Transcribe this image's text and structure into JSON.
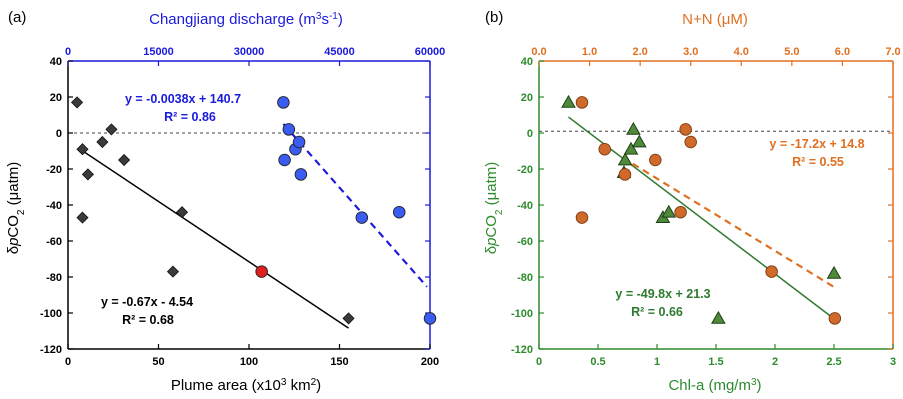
{
  "colors": {
    "black": "#000000",
    "blue": "#1a1adc",
    "blue_marker": "#3a5cf0",
    "red": "#e02020",
    "dark_gray_marker": "#3a3a3a",
    "green": "#2e8b2e",
    "green_marker": "#4f8a3a",
    "orange": "#e07020",
    "orange_marker": "#d06a2a"
  },
  "chart_data": [
    {
      "panel_label": "(a)",
      "type": "scatter",
      "xlabel": "Plume area (x10³ km²)",
      "ylabel": "δpCO₂ (μatm)",
      "xlim": [
        0,
        200
      ],
      "ylim": [
        -120,
        40
      ],
      "xticks": [
        "0",
        "50",
        "100",
        "150",
        "200"
      ],
      "yticks": [
        "40",
        "20",
        "0",
        "-20",
        "-40",
        "-60",
        "-80",
        "-100",
        "-120"
      ],
      "x2label": "Changjiang discharge (m³s⁻¹)",
      "x2lim": [
        0,
        60000
      ],
      "x2ticks": [
        "0",
        "15000",
        "30000",
        "45000",
        "60000"
      ],
      "zero_line": 0,
      "series": [
        {
          "axis": "bottom",
          "marker": "diamond",
          "color": "#3a3a3a",
          "points": [
            [
              5,
              17
            ],
            [
              8,
              -9
            ],
            [
              11,
              -23
            ],
            [
              8,
              -47
            ],
            [
              19,
              -5
            ],
            [
              24,
              2
            ],
            [
              31,
              -15
            ],
            [
              63,
              -44
            ],
            [
              58,
              -77
            ],
            [
              155,
              -103
            ]
          ]
        },
        {
          "axis": "bottom",
          "marker": "circle",
          "color": "#e02020",
          "points": [
            [
              107,
              -77
            ]
          ]
        },
        {
          "axis": "top",
          "marker": "circle",
          "color": "#3a5cf0",
          "points": [
            [
              35700,
              17
            ],
            [
              36600,
              2
            ],
            [
              35900,
              -15
            ],
            [
              37700,
              -9
            ],
            [
              38300,
              -5
            ],
            [
              38600,
              -23
            ],
            [
              48700,
              -47
            ],
            [
              54900,
              -44
            ],
            [
              60000,
              -103
            ]
          ]
        }
      ],
      "fits": [
        {
          "axis": "bottom",
          "x_range": [
            7,
            155
          ],
          "color": "#000000",
          "dashed": false,
          "slope": -0.67,
          "intercept": -4.54,
          "equation": "y = -0.67x - 4.54",
          "r2": "R² = 0.68"
        },
        {
          "axis": "top",
          "x_range": [
            35700,
            59500
          ],
          "color": "#1a1adc",
          "dashed": true,
          "slope": -0.0038,
          "intercept": 140.7,
          "equation": "y = -0.0038x + 140.7",
          "r2": "R² = 0.86"
        }
      ]
    },
    {
      "panel_label": "(b)",
      "type": "scatter",
      "xlabel": "Chl-a (mg/m³)",
      "ylabel": "δpCO₂ (μatm)",
      "xlim": [
        0,
        3
      ],
      "ylim": [
        -120,
        40
      ],
      "xticks": [
        "0",
        "0.5",
        "1",
        "1.5",
        "2",
        "2.5",
        "3"
      ],
      "yticks": [
        "40",
        "20",
        "0",
        "-20",
        "-40",
        "-60",
        "-80",
        "-100",
        "-120"
      ],
      "x2label": "N+N (μM)",
      "x2lim": [
        0,
        7
      ],
      "x2ticks": [
        "0.0",
        "1.0",
        "2.0",
        "3.0",
        "4.0",
        "5.0",
        "6.0",
        "7.0"
      ],
      "zero_line": 1,
      "series": [
        {
          "axis": "bottom",
          "marker": "triangle",
          "color": "#4f8a3a",
          "points": [
            [
              0.25,
              17
            ],
            [
              0.73,
              -15
            ],
            [
              0.72,
              -22
            ],
            [
              0.78,
              -9
            ],
            [
              0.8,
              2
            ],
            [
              0.85,
              -5
            ],
            [
              1.05,
              -47
            ],
            [
              1.1,
              -44
            ],
            [
              1.52,
              -103
            ],
            [
              2.5,
              -78
            ]
          ]
        },
        {
          "axis": "top",
          "marker": "circle",
          "color": "#d06a2a",
          "points": [
            [
              0.85,
              17
            ],
            [
              0.85,
              -47
            ],
            [
              1.3,
              -9
            ],
            [
              1.7,
              -23
            ],
            [
              2.3,
              -15
            ],
            [
              2.8,
              -44
            ],
            [
              2.9,
              2
            ],
            [
              3.0,
              -5
            ],
            [
              4.6,
              -77
            ],
            [
              5.85,
              -103
            ]
          ]
        }
      ],
      "fits": [
        {
          "axis": "bottom",
          "x_range": [
            0.25,
            2.5
          ],
          "color": "#2e7a2e",
          "dashed": false,
          "slope": -49.8,
          "intercept": 21.3,
          "equation": "y = -49.8x + 21.3",
          "r2": "R² = 0.66"
        },
        {
          "axis": "top",
          "x_range": [
            1.65,
            5.85
          ],
          "color": "#e07020",
          "dashed": true,
          "slope": -17.2,
          "intercept": 14.8,
          "equation": "y = -17.2x + 14.8",
          "r2": "R² = 0.55"
        }
      ]
    }
  ]
}
